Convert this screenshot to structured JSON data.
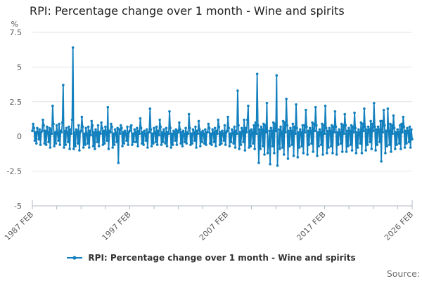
{
  "page": {
    "title": "RPI: Percentage change over 1 month - Wine and spirits",
    "source_label": "Source:"
  },
  "legend": {
    "items": [
      {
        "label": "RPI: Percentage change over 1 month - Wine and spirits",
        "color": "#1380BE"
      }
    ]
  },
  "colors": {
    "line": "#1380BE",
    "grid": "#e4e4e4",
    "axis": "#b0b7bf",
    "tick_text": "#595959"
  },
  "chart_data": {
    "type": "line",
    "title": "RPI: Percentage change over 1 month - Wine and spirits",
    "xlabel": "",
    "ylabel": "%",
    "ylim": [
      -5,
      7.5
    ],
    "y_ticks": [
      7.5,
      5,
      2.5,
      0,
      -2.5,
      -5
    ],
    "grid": true,
    "legend_position": "bottom",
    "frequency": "monthly",
    "x_start": "1987 FEB",
    "x_end": "2026 FEB",
    "x_minor_tick_every_months": 30,
    "x_tick_labels": [
      {
        "text": "1987 FEB",
        "month_index": 0
      },
      {
        "text": "1997 FEB",
        "month_index": 120
      },
      {
        "text": "2007 FEB",
        "month_index": 240
      },
      {
        "text": "2017 FEB",
        "month_index": 360
      },
      {
        "text": "2026 FEB",
        "month_index": 468
      }
    ],
    "values": [
      0.4,
      0.9,
      0.6,
      -0.3,
      0.3,
      -0.5,
      0.6,
      0.3,
      -0.2,
      0.5,
      -0.6,
      0.3,
      0.4,
      1.2,
      0.8,
      -0.5,
      0.4,
      -0.6,
      0.7,
      0.3,
      -0.4,
      0.6,
      -0.8,
      0.5,
      0.2,
      2.2,
      0.9,
      -0.7,
      0.3,
      -0.5,
      0.8,
      0.2,
      -0.3,
      0.9,
      -0.6,
      0.4,
      0.3,
      1.0,
      3.7,
      -0.8,
      0.4,
      -0.6,
      0.6,
      0.3,
      -0.4,
      0.7,
      -0.9,
      0.5,
      0.2,
      1.2,
      6.4,
      -0.9,
      0.3,
      -0.7,
      0.5,
      0.4,
      -0.5,
      0.8,
      -1.0,
      0.3,
      0.4,
      1.4,
      0.7,
      -0.8,
      0.2,
      -0.6,
      0.6,
      0.2,
      -0.5,
      0.7,
      -0.8,
      0.4,
      0.1,
      1.1,
      0.8,
      -0.7,
      0.3,
      -0.9,
      0.5,
      0.3,
      -0.4,
      0.8,
      -0.7,
      0.3,
      0.2,
      1.0,
      0.6,
      -0.6,
      0.4,
      -0.5,
      0.7,
      0.2,
      -0.3,
      2.1,
      -0.9,
      0.4,
      0.3,
      0.9,
      0.7,
      -0.8,
      0.2,
      -0.6,
      0.5,
      0.3,
      -0.4,
      0.6,
      -1.9,
      0.5,
      0.2,
      0.8,
      0.6,
      -0.7,
      0.3,
      -0.5,
      0.4,
      0.2,
      -0.3,
      0.7,
      -0.6,
      0.3,
      0.4,
      0.7,
      0.8,
      -0.6,
      0.2,
      -0.4,
      0.5,
      0.3,
      -0.4,
      0.6,
      -0.7,
      0.4,
      0.2,
      1.3,
      0.6,
      -0.5,
      0.3,
      -0.6,
      0.4,
      0.2,
      -0.3,
      0.5,
      -0.8,
      0.3,
      0.3,
      2.0,
      0.5,
      -0.7,
      0.2,
      -0.5,
      0.6,
      0.3,
      -0.4,
      0.7,
      -0.6,
      0.4,
      0.1,
      1.2,
      0.7,
      -0.6,
      0.3,
      -0.4,
      0.5,
      0.2,
      -0.5,
      0.6,
      -0.7,
      0.3,
      0.2,
      1.8,
      0.6,
      -0.8,
      0.2,
      -0.6,
      0.4,
      0.3,
      -0.3,
      0.5,
      -0.6,
      0.4,
      0.3,
      1.0,
      0.5,
      -0.5,
      0.3,
      -0.7,
      0.4,
      0.2,
      -0.4,
      0.6,
      -0.5,
      0.3,
      0.2,
      1.6,
      0.6,
      -0.6,
      0.2,
      -0.5,
      0.5,
      0.3,
      -0.3,
      0.7,
      -0.8,
      0.4,
      0.2,
      1.1,
      0.5,
      -0.7,
      0.3,
      -0.4,
      0.4,
      0.2,
      -0.5,
      0.5,
      -0.6,
      0.3,
      0.3,
      0.9,
      0.6,
      -0.5,
      0.2,
      -0.6,
      0.5,
      0.3,
      -0.4,
      0.6,
      -0.7,
      0.4,
      0.2,
      1.2,
      0.7,
      -0.6,
      0.3,
      -0.5,
      0.4,
      0.2,
      -0.3,
      0.8,
      -0.6,
      0.3,
      0.4,
      1.4,
      0.6,
      -0.7,
      0.2,
      -0.4,
      0.5,
      0.3,
      -0.5,
      0.7,
      -0.8,
      0.4,
      0.2,
      3.3,
      0.8,
      -0.9,
      0.3,
      -0.6,
      0.6,
      0.4,
      -0.4,
      1.2,
      -1.0,
      0.6,
      0.3,
      1.2,
      2.2,
      -0.8,
      0.4,
      -0.7,
      0.5,
      0.3,
      -0.5,
      0.8,
      -0.9,
      1.0,
      0.2,
      4.5,
      0.8,
      -1.9,
      0.5,
      -0.9,
      0.7,
      0.5,
      -0.7,
      0.9,
      -1.3,
      0.8,
      0.3,
      2.4,
      -1.2,
      -0.6,
      0.4,
      -2.0,
      0.6,
      0.4,
      -0.7,
      1.0,
      -1.2,
      0.9,
      0.4,
      4.4,
      -2.1,
      -0.5,
      0.5,
      -0.9,
      0.7,
      0.3,
      -0.8,
      1.1,
      -1.3,
      1.0,
      0.3,
      2.7,
      0.8,
      -1.6,
      0.4,
      -0.7,
      0.6,
      0.4,
      -0.6,
      0.9,
      -1.4,
      0.7,
      0.2,
      2.3,
      0.6,
      -1.5,
      0.3,
      -0.8,
      0.5,
      0.3,
      -0.7,
      0.8,
      -1.2,
      0.8,
      0.3,
      1.9,
      0.7,
      -1.3,
      0.4,
      -0.6,
      0.6,
      0.4,
      -0.5,
      1.0,
      -1.1,
      0.9,
      0.4,
      2.1,
      0.8,
      -1.4,
      0.3,
      -0.7,
      0.5,
      0.3,
      -0.6,
      0.9,
      -1.3,
      0.8,
      0.2,
      2.2,
      0.6,
      -1.2,
      0.4,
      -0.8,
      0.6,
      0.4,
      -0.7,
      0.8,
      -1.2,
      0.7,
      0.3,
      1.8,
      0.7,
      -1.3,
      0.3,
      -0.6,
      0.5,
      0.3,
      -0.5,
      0.9,
      -1.1,
      0.8,
      0.2,
      1.6,
      0.8,
      -1.1,
      0.4,
      -0.7,
      0.6,
      0.4,
      -0.6,
      0.8,
      -1.0,
      0.7,
      0.3,
      1.7,
      0.6,
      -1.2,
      0.3,
      -0.8,
      0.5,
      0.3,
      -0.5,
      1.0,
      -1.2,
      0.9,
      0.4,
      2.0,
      0.7,
      -1.0,
      0.5,
      -0.6,
      0.7,
      0.5,
      -0.4,
      1.1,
      -0.9,
      0.9,
      0.4,
      2.4,
      0.7,
      -1.0,
      0.5,
      -0.6,
      0.7,
      0.5,
      -0.4,
      1.1,
      -1.8,
      1.1,
      0.3,
      1.9,
      0.8,
      -1.2,
      0.4,
      -0.7,
      2.0,
      0.4,
      -0.6,
      0.9,
      -1.1,
      0.8,
      0.2,
      1.5,
      0.6,
      -0.9,
      0.3,
      -0.6,
      0.5,
      0.3,
      -0.5,
      0.8,
      -0.9,
      0.9,
      0.3,
      1.4,
      0.7,
      -0.8,
      0.4,
      -0.5,
      0.6,
      0.4,
      -0.4,
      0.7,
      -0.8,
      0.5,
      -0.2
    ]
  }
}
